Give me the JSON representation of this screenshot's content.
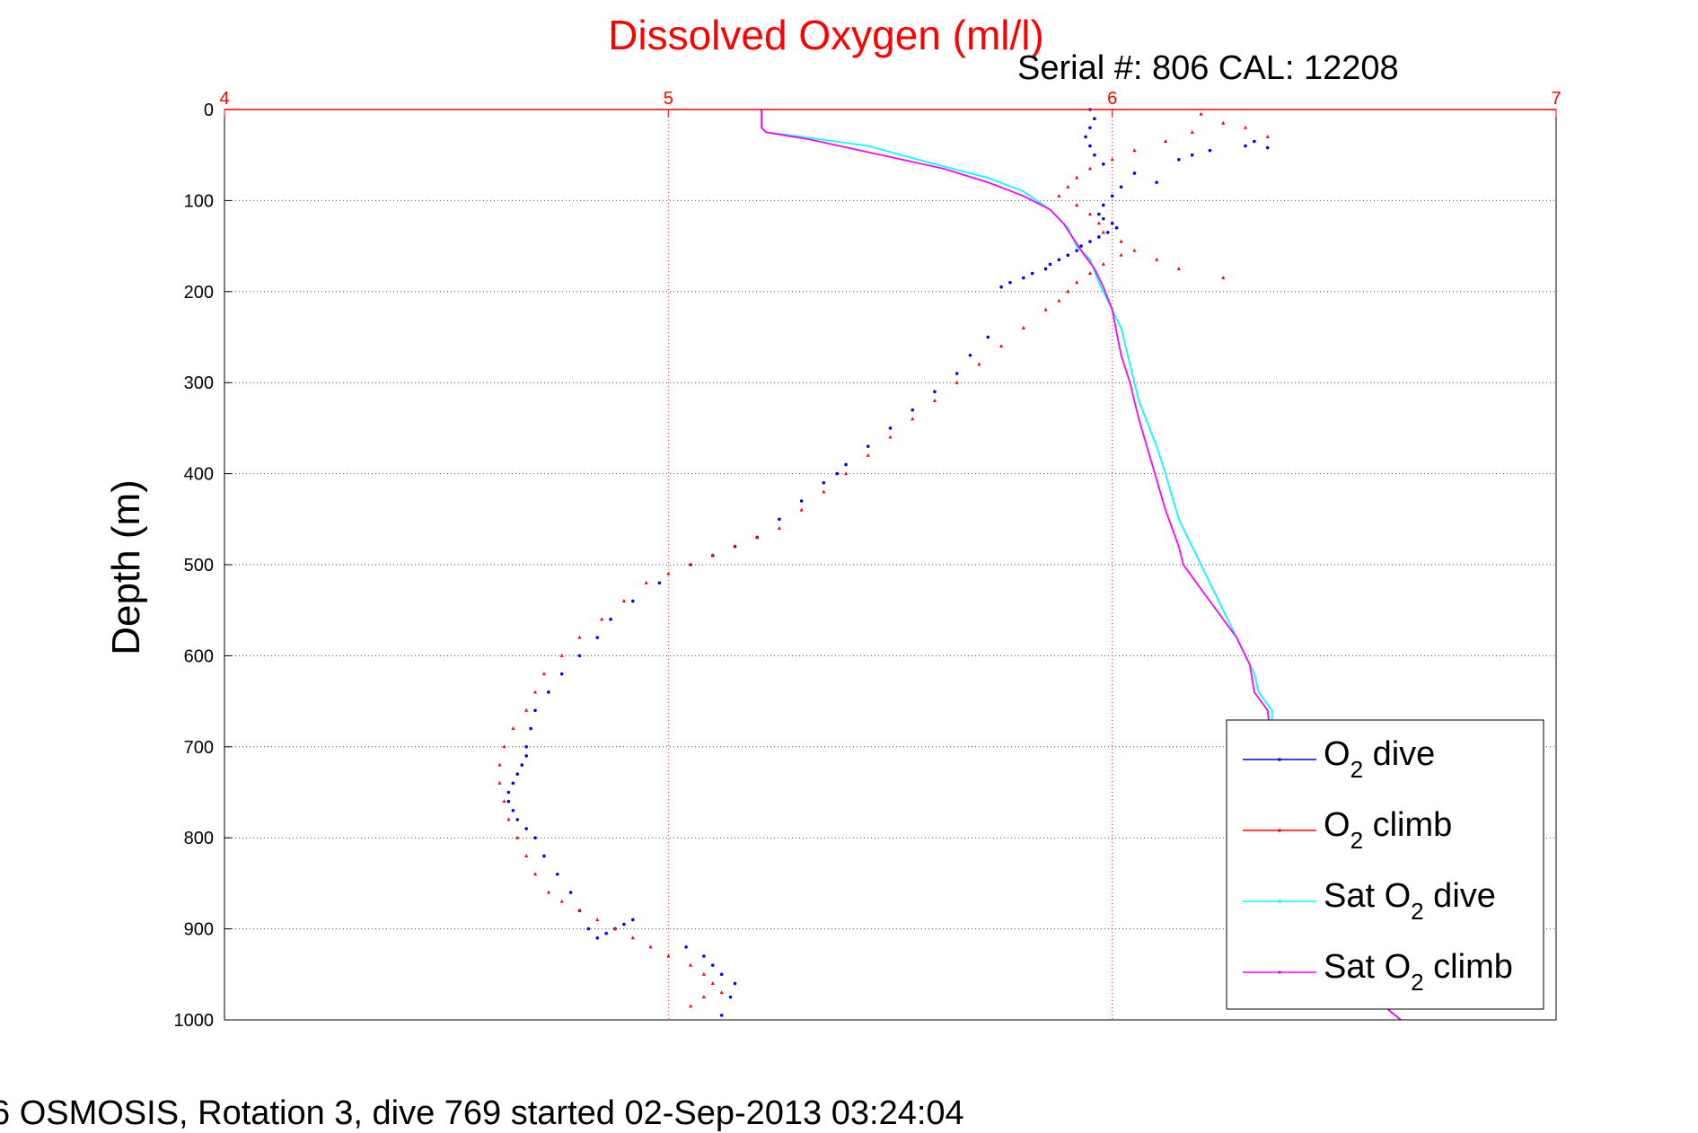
{
  "chart_data": {
    "type": "scatter",
    "title": "Dissolved Oxygen (ml/l)",
    "subtitle": "Serial #: 806  CAL: 12208",
    "ylabel": "Depth (m)",
    "footer": "6 OSMOSIS, Rotation 3, dive 769 started 02-Sep-2013 03:24:04",
    "xlim": [
      4,
      7
    ],
    "ylim": [
      0,
      1000
    ],
    "y_reversed": true,
    "x_ticks": [
      "4",
      "5",
      "6",
      "7"
    ],
    "y_ticks": [
      "0",
      "100",
      "200",
      "300",
      "400",
      "500",
      "600",
      "700",
      "800",
      "900",
      "1000"
    ],
    "grid": true,
    "legend_position": "bottom-right",
    "legend": [
      {
        "key": "o2_dive",
        "label_main": "O",
        "label_sub": "2",
        "label_rest": " dive",
        "color": "#0000ff"
      },
      {
        "key": "o2_climb",
        "label_main": "O",
        "label_sub": "2",
        "label_rest": " climb",
        "color": "#ff0000"
      },
      {
        "key": "sat_dive",
        "label_main": "Sat O",
        "label_sub": "2",
        "label_rest": " dive",
        "color": "#00ffff"
      },
      {
        "key": "sat_climb",
        "label_main": "Sat O",
        "label_sub": "2",
        "label_rest": " climb",
        "color": "#ff00ff"
      }
    ],
    "series": [
      {
        "key": "o2_dive",
        "style": "dots",
        "color": "#0000ff",
        "x": [
          5.95,
          5.96,
          5.95,
          5.94,
          5.95,
          5.96,
          5.98,
          6.05,
          6.1,
          6.15,
          6.18,
          6.22,
          6.3,
          6.32,
          6.35,
          6.02,
          6.0,
          5.98,
          5.97,
          5.98,
          6.0,
          6.01,
          5.99,
          5.97,
          5.95,
          5.93,
          5.92,
          5.9,
          5.88,
          5.86,
          5.85,
          5.82,
          5.8,
          5.77,
          5.75,
          5.72,
          5.68,
          5.65,
          5.6,
          5.55,
          5.5,
          5.45,
          5.4,
          5.38,
          5.35,
          5.3,
          5.25,
          5.2,
          5.15,
          5.1,
          5.05,
          4.98,
          4.92,
          4.87,
          4.84,
          4.8,
          4.76,
          4.73,
          4.7,
          4.69,
          4.68,
          4.68,
          4.67,
          4.66,
          4.65,
          4.64,
          4.64,
          4.65,
          4.66,
          4.68,
          4.7,
          4.72,
          4.75,
          4.78,
          4.8,
          4.82,
          4.84,
          4.86,
          4.88,
          4.9,
          4.92,
          5.04,
          5.08,
          5.1,
          5.12,
          5.15,
          5.14,
          5.12
        ],
        "y": [
          0,
          10,
          20,
          30,
          40,
          50,
          60,
          70,
          80,
          55,
          50,
          45,
          40,
          35,
          42,
          85,
          95,
          105,
          115,
          120,
          125,
          130,
          135,
          140,
          145,
          150,
          155,
          160,
          165,
          170,
          175,
          180,
          185,
          190,
          195,
          250,
          270,
          290,
          310,
          330,
          350,
          370,
          390,
          400,
          410,
          430,
          450,
          470,
          480,
          490,
          500,
          520,
          540,
          560,
          580,
          600,
          620,
          640,
          660,
          680,
          700,
          710,
          720,
          730,
          740,
          750,
          760,
          770,
          780,
          790,
          800,
          820,
          840,
          860,
          880,
          900,
          910,
          905,
          900,
          895,
          890,
          920,
          930,
          940,
          950,
          960,
          975,
          995
        ]
      },
      {
        "key": "o2_climb",
        "style": "triangles",
        "color": "#ff0000",
        "x": [
          6.2,
          6.25,
          6.18,
          6.12,
          6.05,
          6.0,
          5.95,
          5.92,
          5.9,
          5.88,
          5.92,
          5.95,
          5.97,
          5.98,
          6.02,
          6.05,
          6.1,
          6.15,
          6.25,
          6.3,
          6.35,
          6.02,
          5.98,
          5.95,
          5.92,
          5.9,
          5.88,
          5.85,
          5.8,
          5.75,
          5.7,
          5.65,
          5.6,
          5.55,
          5.5,
          5.45,
          5.4,
          5.35,
          5.3,
          5.25,
          5.2,
          5.15,
          5.1,
          5.05,
          5.0,
          4.95,
          4.9,
          4.85,
          4.8,
          4.76,
          4.72,
          4.7,
          4.68,
          4.65,
          4.63,
          4.62,
          4.62,
          4.63,
          4.64,
          4.66,
          4.68,
          4.7,
          4.73,
          4.76,
          4.8,
          4.84,
          4.88,
          4.92,
          4.96,
          5.0,
          5.05,
          5.08,
          5.1,
          5.12,
          5.08,
          5.05
        ],
        "y": [
          5,
          15,
          25,
          35,
          45,
          55,
          65,
          75,
          85,
          95,
          105,
          115,
          125,
          135,
          145,
          155,
          165,
          175,
          185,
          20,
          30,
          160,
          170,
          180,
          190,
          200,
          210,
          220,
          240,
          260,
          280,
          300,
          320,
          340,
          360,
          380,
          400,
          420,
          440,
          460,
          470,
          480,
          490,
          500,
          510,
          520,
          540,
          560,
          580,
          600,
          620,
          640,
          660,
          680,
          700,
          720,
          740,
          760,
          780,
          800,
          820,
          840,
          860,
          870,
          880,
          890,
          900,
          910,
          920,
          930,
          940,
          950,
          960,
          970,
          975,
          985
        ]
      },
      {
        "key": "sat_dive",
        "style": "line",
        "color": "#00ffff",
        "x": [
          5.21,
          5.21,
          5.22,
          5.3,
          5.45,
          5.6,
          5.72,
          5.8,
          5.86,
          5.9,
          5.91,
          5.92,
          5.95,
          5.97,
          6.0,
          6.02,
          6.03,
          6.04,
          6.06,
          6.1,
          6.12,
          6.15,
          6.18,
          6.22,
          6.28,
          6.32,
          6.33,
          6.36,
          6.36,
          6.38,
          6.4,
          6.45,
          6.55,
          6.65
        ],
        "y": [
          0,
          20,
          25,
          30,
          40,
          60,
          75,
          90,
          110,
          130,
          140,
          150,
          165,
          190,
          220,
          240,
          260,
          280,
          320,
          370,
          400,
          450,
          480,
          520,
          580,
          620,
          640,
          660,
          700,
          760,
          820,
          880,
          960,
          1000
        ]
      },
      {
        "key": "sat_climb",
        "style": "line",
        "color": "#ff00ff",
        "x": [
          5.21,
          5.21,
          5.22,
          5.32,
          5.48,
          5.62,
          5.72,
          5.8,
          5.86,
          5.89,
          5.91,
          5.93,
          5.96,
          5.98,
          6.0,
          6.01,
          6.02,
          6.04,
          6.06,
          6.09,
          6.12,
          6.15,
          6.16,
          6.22,
          6.28,
          6.31,
          6.32,
          6.35,
          6.36,
          6.38,
          6.4,
          6.45,
          6.55,
          6.65
        ],
        "y": [
          0,
          20,
          25,
          33,
          50,
          65,
          80,
          95,
          110,
          125,
          140,
          155,
          175,
          195,
          220,
          245,
          270,
          300,
          340,
          390,
          440,
          480,
          500,
          540,
          580,
          610,
          640,
          660,
          700,
          760,
          820,
          880,
          960,
          1000
        ]
      }
    ]
  }
}
